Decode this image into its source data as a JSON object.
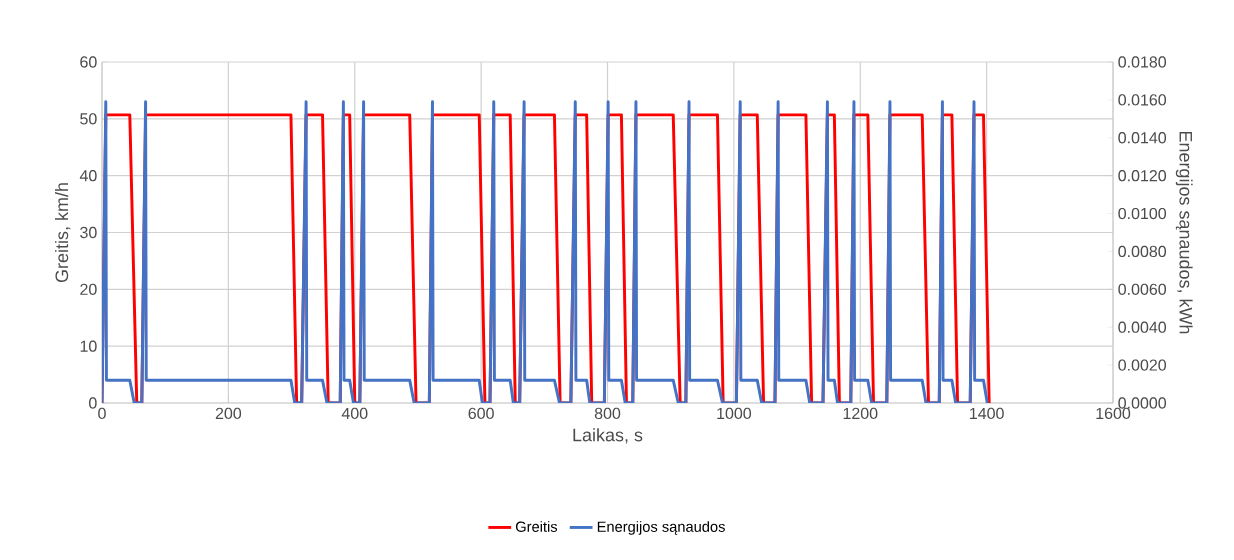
{
  "chart_data": {
    "type": "line",
    "xlabel": "Laikas, s",
    "ylabel": "Greitis, km/h",
    "y2label": "Energijos sąnaudos, kWh",
    "xlim": [
      0,
      1600
    ],
    "xticks": [
      0,
      200,
      400,
      600,
      800,
      1000,
      1200,
      1400,
      1600
    ],
    "ylim": [
      0,
      60
    ],
    "yticks": [
      0,
      10,
      20,
      30,
      40,
      50,
      60
    ],
    "y2lim": [
      0,
      0.018
    ],
    "y2ticks": [
      {
        "value": 0,
        "label": "0.0000"
      },
      {
        "value": 0.002,
        "label": "0.0020"
      },
      {
        "value": 0.004,
        "label": "0.0040"
      },
      {
        "value": 0.006,
        "label": "0.0060"
      },
      {
        "value": 0.008,
        "label": "0.0080"
      },
      {
        "value": 0.01,
        "label": "0.0100"
      },
      {
        "value": 0.012,
        "label": "0.0120"
      },
      {
        "value": 0.014,
        "label": "0.0140"
      },
      {
        "value": 0.016,
        "label": "0.0160"
      },
      {
        "value": 0.018,
        "label": "0.0180"
      }
    ],
    "grid": true,
    "legend": "bottom",
    "series": [
      {
        "name": "Greitis",
        "color": "#ff0000",
        "x": [
          0,
          6,
          44,
          55,
          63,
          69,
          299,
          308,
          316,
          323,
          349,
          358,
          377,
          382,
          392,
          400,
          408,
          414,
          487,
          497,
          518,
          523,
          597,
          606,
          614,
          620,
          646,
          654,
          661,
          668,
          716,
          725,
          742,
          749,
          767,
          775,
          795,
          801,
          822,
          830,
          840,
          845,
          904,
          915,
          924,
          929,
          974,
          983,
          1004,
          1010,
          1037,
          1047,
          1065,
          1070,
          1114,
          1123,
          1141,
          1148,
          1159,
          1167,
          1185,
          1190,
          1212,
          1221,
          1242,
          1247,
          1298,
          1308,
          1325,
          1330,
          1345,
          1354,
          1374,
          1380,
          1395,
          1404
        ],
        "values": [
          0,
          50.7,
          50.7,
          0,
          0,
          50.7,
          50.7,
          0,
          0,
          50.7,
          50.7,
          0,
          0,
          50.7,
          50.7,
          0,
          0,
          50.7,
          50.7,
          0,
          0,
          50.7,
          50.7,
          0,
          0,
          50.7,
          50.7,
          0,
          0,
          50.7,
          50.7,
          0,
          0,
          50.7,
          50.7,
          0,
          0,
          50.7,
          50.7,
          0,
          0,
          50.7,
          50.7,
          0,
          0,
          50.7,
          50.7,
          0,
          0,
          50.7,
          50.7,
          0,
          0,
          50.7,
          50.7,
          0,
          0,
          50.7,
          50.7,
          0,
          0,
          50.7,
          50.7,
          0,
          0,
          50.7,
          50.7,
          0,
          0,
          50.7,
          50.7,
          0,
          0,
          50.7,
          50.7,
          0
        ]
      },
      {
        "name": "Energijos sąnaudos",
        "color": "#4472c4",
        "axis": "y2",
        "x": [
          0,
          6,
          7,
          44,
          51,
          63,
          69,
          70,
          299,
          305,
          316,
          323,
          324,
          349,
          356,
          377,
          382,
          383,
          392,
          398,
          408,
          414,
          415,
          487,
          494,
          518,
          523,
          524,
          597,
          602,
          614,
          620,
          621,
          646,
          651,
          661,
          668,
          669,
          716,
          724,
          742,
          749,
          750,
          767,
          772,
          795,
          801,
          802,
          822,
          828,
          840,
          845,
          846,
          904,
          912,
          924,
          929,
          930,
          974,
          982,
          1004,
          1010,
          1011,
          1037,
          1044,
          1065,
          1070,
          1071,
          1114,
          1120,
          1141,
          1148,
          1149,
          1159,
          1164,
          1185,
          1190,
          1191,
          1212,
          1218,
          1242,
          1247,
          1248,
          1298,
          1304,
          1325,
          1330,
          1331,
          1345,
          1351,
          1374,
          1380,
          1381,
          1395,
          1401
        ],
        "values": [
          0,
          0.0159,
          0.0012,
          0.0012,
          0,
          0,
          0.0159,
          0.0012,
          0.0012,
          0,
          0,
          0.0159,
          0.0012,
          0.0012,
          0,
          0,
          0.0159,
          0.0012,
          0.0012,
          0,
          0,
          0.0159,
          0.0012,
          0.0012,
          0,
          0,
          0.0159,
          0.0012,
          0.0012,
          0,
          0,
          0.0159,
          0.0012,
          0.0012,
          0,
          0,
          0.0159,
          0.0012,
          0.0012,
          0,
          0,
          0.0159,
          0.0012,
          0.0012,
          0,
          0,
          0.0159,
          0.0012,
          0.0012,
          0,
          0,
          0.0159,
          0.0012,
          0.0012,
          0,
          0,
          0.0159,
          0.0012,
          0.0012,
          0,
          0,
          0.0159,
          0.0012,
          0.0012,
          0,
          0,
          0.0159,
          0.0012,
          0.0012,
          0,
          0,
          0.0159,
          0.0012,
          0.0012,
          0,
          0,
          0.0159,
          0.0012,
          0.0012,
          0,
          0,
          0.0159,
          0.0012,
          0.0012,
          0,
          0,
          0.0159,
          0.0012,
          0.0012,
          0,
          0,
          0.0159,
          0.0012,
          0.0012,
          0
        ]
      }
    ]
  }
}
